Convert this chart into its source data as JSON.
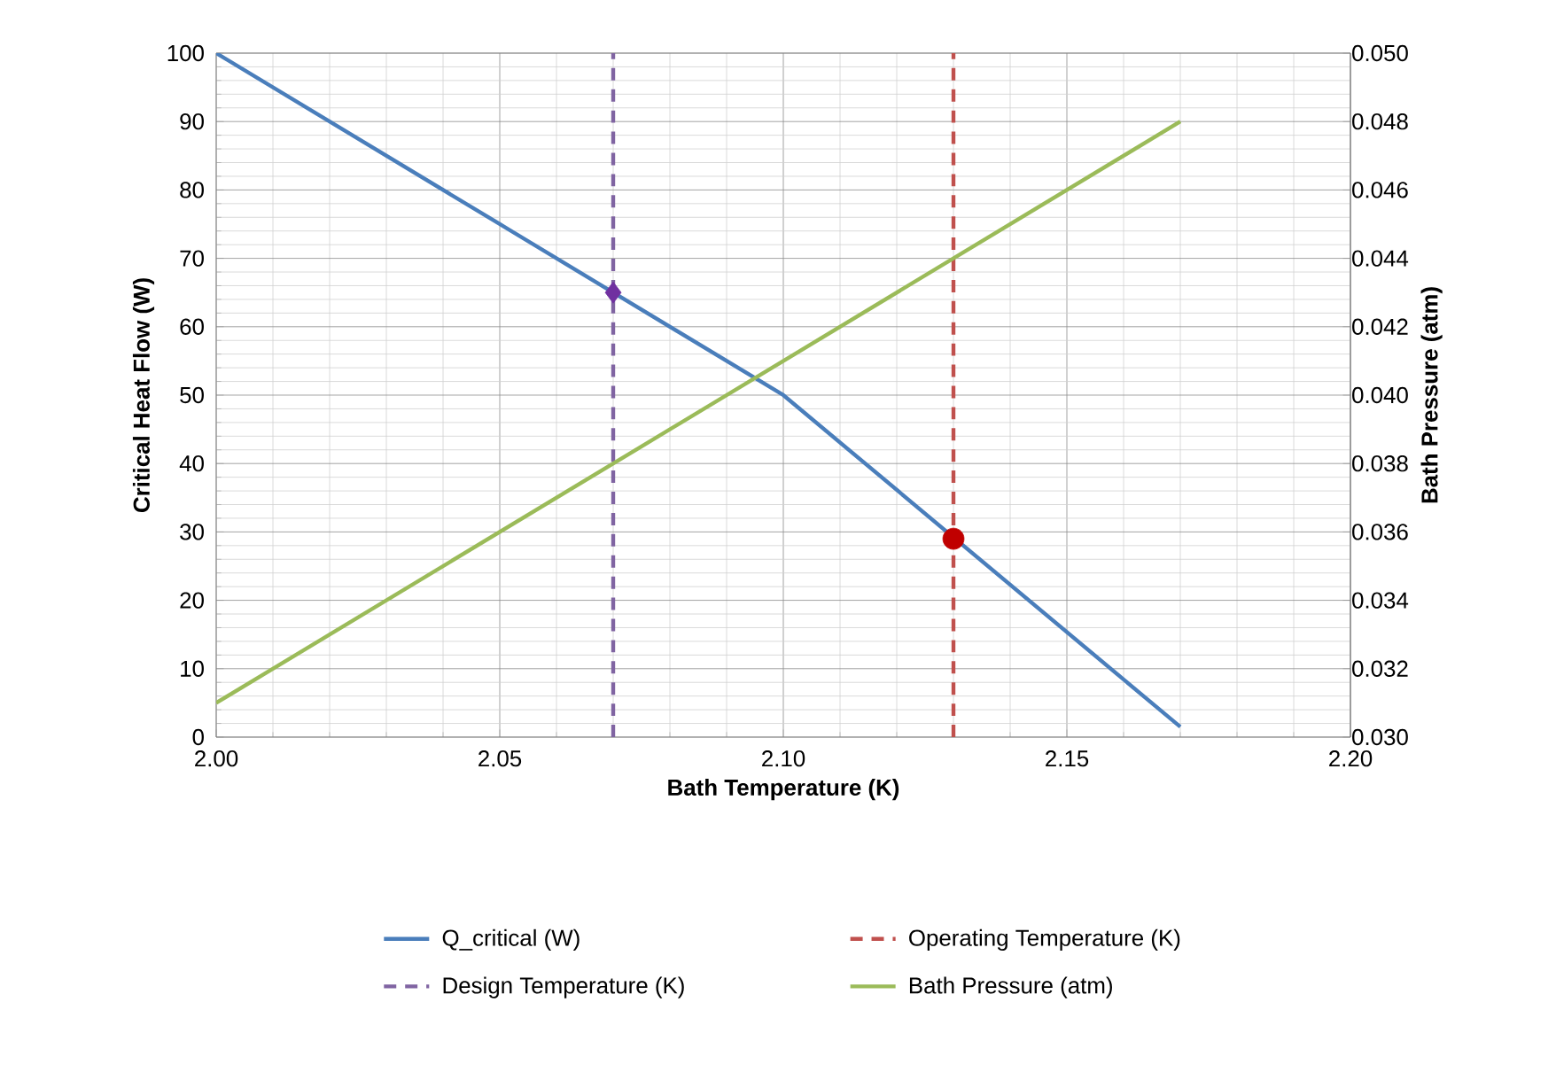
{
  "chart_data": {
    "type": "line",
    "xlabel": "Bath Temperature (K)",
    "ylabel": "Critical Heat Flow (W)",
    "y2label": "Bath Pressure (atm)",
    "xlim": [
      2.0,
      2.2
    ],
    "xticks": [
      {
        "value": 2.0,
        "label": "2.00"
      },
      {
        "value": 2.05,
        "label": "2.05"
      },
      {
        "value": 2.1,
        "label": "2.10"
      },
      {
        "value": 2.15,
        "label": "2.15"
      },
      {
        "value": 2.2,
        "label": "2.20"
      }
    ],
    "ylim": [
      0,
      100
    ],
    "yticks": [
      0,
      10,
      20,
      30,
      40,
      50,
      60,
      70,
      80,
      90,
      100
    ],
    "y2lim": [
      0.03,
      0.05
    ],
    "y2ticks": [
      {
        "value": 0.03,
        "label": "0.030"
      },
      {
        "value": 0.032,
        "label": "0.032"
      },
      {
        "value": 0.034,
        "label": "0.034"
      },
      {
        "value": 0.036,
        "label": "0.036"
      },
      {
        "value": 0.038,
        "label": "0.038"
      },
      {
        "value": 0.04,
        "label": "0.040"
      },
      {
        "value": 0.042,
        "label": "0.042"
      },
      {
        "value": 0.044,
        "label": "0.044"
      },
      {
        "value": 0.046,
        "label": "0.046"
      },
      {
        "value": 0.048,
        "label": "0.048"
      },
      {
        "value": 0.05,
        "label": "0.050"
      }
    ],
    "grid": true,
    "legend": "bottom",
    "series": [
      {
        "name": "Q_critical (W)",
        "color": "#4a7ebb",
        "line_style": "solid",
        "x": [
          2.0,
          2.05,
          2.1,
          2.17
        ],
        "values": [
          100,
          75,
          50,
          1.5
        ]
      },
      {
        "name": "Operating Temperature (K)",
        "color": "#c0504d",
        "line_style": "dashed",
        "x": [
          2.13,
          2.13
        ],
        "values": [
          0,
          100
        ]
      },
      {
        "name": "Design Temperature (K)",
        "color": "#8064a2",
        "line_style": "dashed",
        "x": [
          2.07,
          2.07
        ],
        "values": [
          0,
          100
        ]
      },
      {
        "name": "Bath Pressure (atm)",
        "color": "#9bbb59",
        "line_style": "solid",
        "axis": "y2",
        "x": [
          2.0,
          2.17
        ],
        "values": [
          0.031,
          0.048
        ]
      },
      {
        "type": "scatter",
        "color": "#7030a0",
        "marker": "diamond",
        "x": [
          2.07
        ],
        "values": [
          65
        ]
      },
      {
        "type": "scatter",
        "color": "#c00000",
        "marker": "circle",
        "x": [
          2.13
        ],
        "values": [
          29
        ]
      }
    ]
  }
}
